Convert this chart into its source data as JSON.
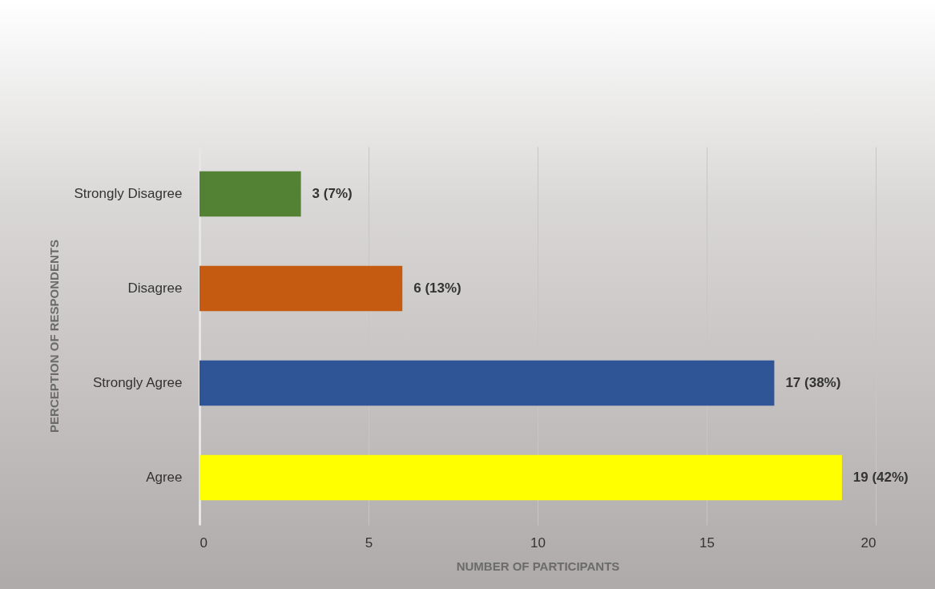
{
  "chart_data": {
    "type": "bar",
    "orientation": "horizontal",
    "xlabel": "NUMBER OF PARTICIPANTS",
    "ylabel": "PERCEPTION OF RESPONDENTS",
    "categories": [
      "Strongly Disagree",
      "Disagree",
      "Strongly Agree",
      "Agree"
    ],
    "values": [
      3,
      6,
      17,
      19
    ],
    "colors": [
      "#548235",
      "#c55a11",
      "#2f5597",
      "#ffff00"
    ],
    "value_labels": [
      "3 (7%)",
      "6 (13%)",
      "17 (38%)",
      "19 (42%)"
    ],
    "xlim": [
      0,
      20
    ],
    "xticks": [
      0,
      5,
      10,
      15,
      20
    ],
    "grid": "x"
  }
}
